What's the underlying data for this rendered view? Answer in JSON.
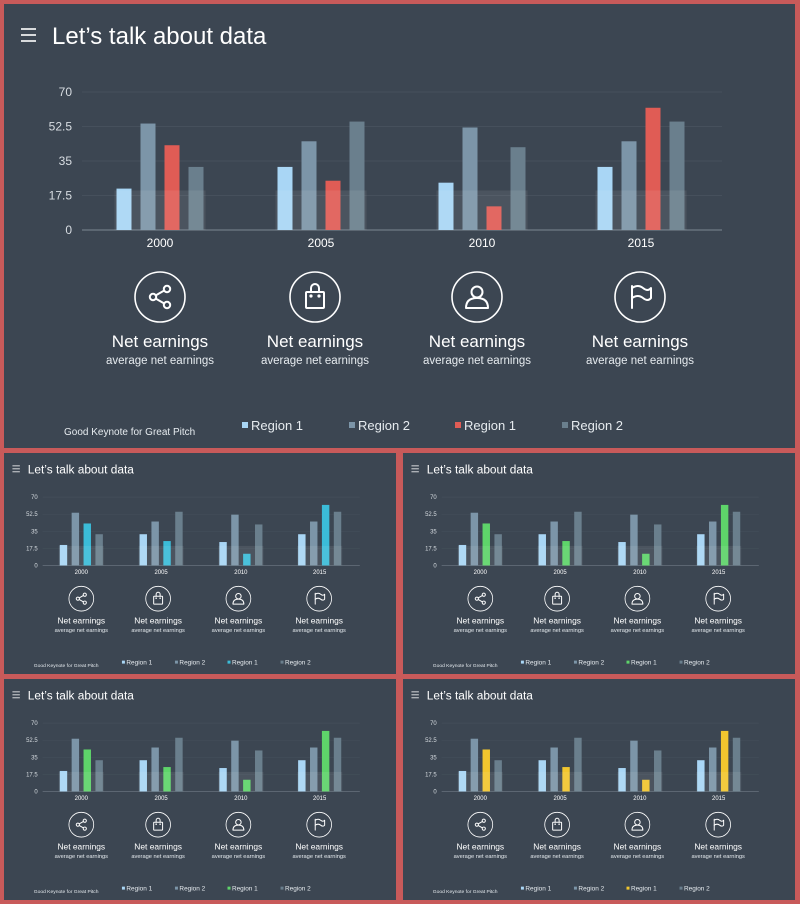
{
  "slide_title": "Let’s talk about data",
  "footer_text": "Good Keynote for Great Pitch",
  "features": [
    {
      "icon": "share-icon",
      "title": "Net earnings",
      "subtitle": "average net earnings"
    },
    {
      "icon": "bag-icon",
      "title": "Net earnings",
      "subtitle": "average net earnings"
    },
    {
      "icon": "user-icon",
      "title": "Net earnings",
      "subtitle": "average net earnings"
    },
    {
      "icon": "flag-icon",
      "title": "Net earnings",
      "subtitle": "average net earnings"
    }
  ],
  "colors": {
    "region1": "#a9d6f5",
    "region2": "#7c95a8",
    "region2_alt": "#6a7f8d",
    "accent_red": "#e05c55",
    "accent_cyan": "#3bbcd8",
    "accent_green": "#5ed46a",
    "accent_yellow": "#f1c62e"
  },
  "chart_data": [
    {
      "type": "bar",
      "categories": [
        "2000",
        "2005",
        "2010",
        "2015"
      ],
      "ylim": [
        0,
        70
      ],
      "yticks": [
        "0",
        "17.5",
        "35",
        "52.5",
        "70"
      ],
      "grid": true,
      "legend_position": "bottom",
      "accent": "#e05c55",
      "series": [
        {
          "name": "Region 1",
          "values": [
            21,
            32,
            24,
            32
          ]
        },
        {
          "name": "Region 2",
          "values": [
            54,
            45,
            52,
            45
          ]
        },
        {
          "name": "Region 1",
          "values": [
            43,
            25,
            12,
            62
          ]
        },
        {
          "name": "Region 2",
          "values": [
            32,
            55,
            42,
            55
          ]
        }
      ]
    },
    {
      "type": "bar",
      "categories": [
        "2000",
        "2005",
        "2010",
        "2015"
      ],
      "ylim": [
        0,
        70
      ],
      "yticks": [
        "0",
        "17.5",
        "35",
        "52.5",
        "70"
      ],
      "grid": true,
      "legend_position": "bottom",
      "accent": "#3bbcd8",
      "series": [
        {
          "name": "Region 1",
          "values": [
            21,
            32,
            24,
            32
          ]
        },
        {
          "name": "Region 2",
          "values": [
            54,
            45,
            52,
            45
          ]
        },
        {
          "name": "Region 1",
          "values": [
            43,
            25,
            12,
            62
          ]
        },
        {
          "name": "Region 2",
          "values": [
            32,
            55,
            42,
            55
          ]
        }
      ]
    },
    {
      "type": "bar",
      "categories": [
        "2000",
        "2005",
        "2010",
        "2015"
      ],
      "ylim": [
        0,
        70
      ],
      "yticks": [
        "0",
        "17.5",
        "35",
        "52.5",
        "70"
      ],
      "grid": true,
      "legend_position": "bottom",
      "accent": "#5ed46a",
      "series": [
        {
          "name": "Region 1",
          "values": [
            21,
            32,
            24,
            32
          ]
        },
        {
          "name": "Region 2",
          "values": [
            54,
            45,
            52,
            45
          ]
        },
        {
          "name": "Region 1",
          "values": [
            43,
            25,
            12,
            62
          ]
        },
        {
          "name": "Region 2",
          "values": [
            32,
            55,
            42,
            55
          ]
        }
      ]
    },
    {
      "type": "bar",
      "categories": [
        "2000",
        "2005",
        "2010",
        "2015"
      ],
      "ylim": [
        0,
        70
      ],
      "yticks": [
        "0",
        "17.5",
        "35",
        "52.5",
        "70"
      ],
      "grid": true,
      "legend_position": "bottom",
      "accent": "#5ed46a",
      "series": [
        {
          "name": "Region 1",
          "values": [
            21,
            32,
            24,
            32
          ]
        },
        {
          "name": "Region 2",
          "values": [
            54,
            45,
            52,
            45
          ]
        },
        {
          "name": "Region 1",
          "values": [
            43,
            25,
            12,
            62
          ]
        },
        {
          "name": "Region 2",
          "values": [
            32,
            55,
            42,
            55
          ]
        }
      ]
    },
    {
      "type": "bar",
      "categories": [
        "2000",
        "2005",
        "2010",
        "2015"
      ],
      "ylim": [
        0,
        70
      ],
      "yticks": [
        "0",
        "17.5",
        "35",
        "52.5",
        "70"
      ],
      "grid": true,
      "legend_position": "bottom",
      "accent": "#f1c62e",
      "series": [
        {
          "name": "Region 1",
          "values": [
            21,
            32,
            24,
            32
          ]
        },
        {
          "name": "Region 2",
          "values": [
            54,
            45,
            52,
            45
          ]
        },
        {
          "name": "Region 1",
          "values": [
            43,
            25,
            12,
            62
          ]
        },
        {
          "name": "Region 2",
          "values": [
            32,
            55,
            42,
            55
          ]
        }
      ]
    }
  ]
}
